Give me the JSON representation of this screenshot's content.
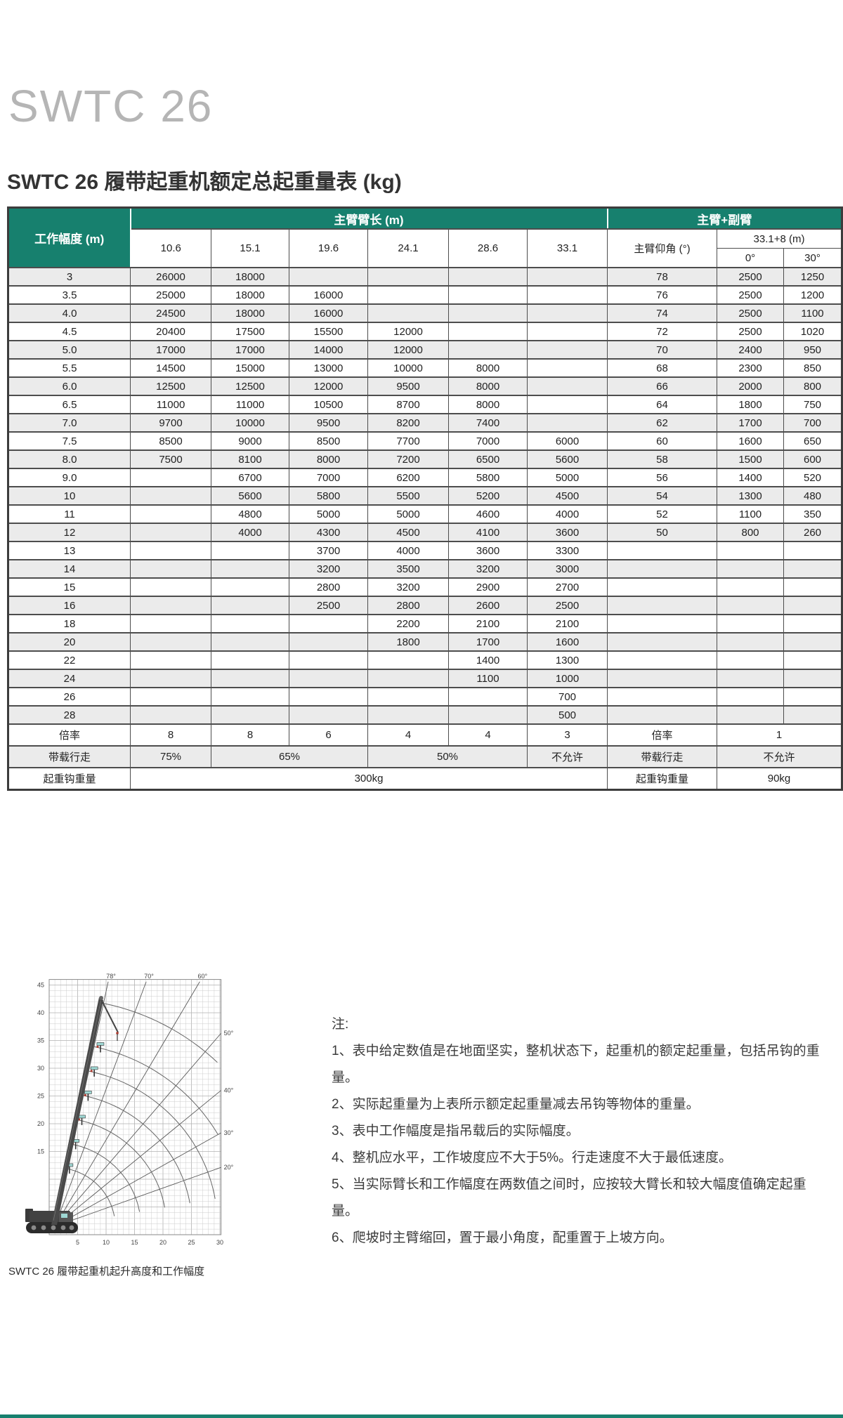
{
  "page": {
    "model": "SWTC 26",
    "subtitle": "SWTC 26 履带起重机额定总起重量表 (kg)",
    "accent_color": "#17806E",
    "stripe_color": "#ebebeb"
  },
  "table": {
    "header": {
      "col1": "工作幅度 (m)",
      "main_boom_group": "主臂臂长 (m)",
      "jib_group": "主臂+副臂",
      "boom_lengths": [
        "10.6",
        "15.1",
        "19.6",
        "24.1",
        "28.6",
        "33.1"
      ],
      "angle_col": "主臂仰角 (°)",
      "jib_config": "33.1+8  (m)",
      "jib_angles": [
        "0°",
        "30°"
      ]
    },
    "rows": [
      {
        "radius": "3",
        "values": [
          "26000",
          "18000",
          "",
          "",
          "",
          ""
        ],
        "angle": "78",
        "jib": [
          "2500",
          "1250"
        ]
      },
      {
        "radius": "3.5",
        "values": [
          "25000",
          "18000",
          "16000",
          "",
          "",
          ""
        ],
        "angle": "76",
        "jib": [
          "2500",
          "1200"
        ]
      },
      {
        "radius": "4.0",
        "values": [
          "24500",
          "18000",
          "16000",
          "",
          "",
          ""
        ],
        "angle": "74",
        "jib": [
          "2500",
          "1100"
        ]
      },
      {
        "radius": "4.5",
        "values": [
          "20400",
          "17500",
          "15500",
          "12000",
          "",
          ""
        ],
        "angle": "72",
        "jib": [
          "2500",
          "1020"
        ]
      },
      {
        "radius": "5.0",
        "values": [
          "17000",
          "17000",
          "14000",
          "12000",
          "",
          ""
        ],
        "angle": "70",
        "jib": [
          "2400",
          "950"
        ]
      },
      {
        "radius": "5.5",
        "values": [
          "14500",
          "15000",
          "13000",
          "10000",
          "8000",
          ""
        ],
        "angle": "68",
        "jib": [
          "2300",
          "850"
        ]
      },
      {
        "radius": "6.0",
        "values": [
          "12500",
          "12500",
          "12000",
          "9500",
          "8000",
          ""
        ],
        "angle": "66",
        "jib": [
          "2000",
          "800"
        ]
      },
      {
        "radius": "6.5",
        "values": [
          "11000",
          "11000",
          "10500",
          "8700",
          "8000",
          ""
        ],
        "angle": "64",
        "jib": [
          "1800",
          "750"
        ]
      },
      {
        "radius": "7.0",
        "values": [
          "9700",
          "10000",
          "9500",
          "8200",
          "7400",
          ""
        ],
        "angle": "62",
        "jib": [
          "1700",
          "700"
        ]
      },
      {
        "radius": "7.5",
        "values": [
          "8500",
          "9000",
          "8500",
          "7700",
          "7000",
          "6000"
        ],
        "angle": "60",
        "jib": [
          "1600",
          "650"
        ]
      },
      {
        "radius": "8.0",
        "values": [
          "7500",
          "8100",
          "8000",
          "7200",
          "6500",
          "5600"
        ],
        "angle": "58",
        "jib": [
          "1500",
          "600"
        ]
      },
      {
        "radius": "9.0",
        "values": [
          "",
          "6700",
          "7000",
          "6200",
          "5800",
          "5000"
        ],
        "angle": "56",
        "jib": [
          "1400",
          "520"
        ]
      },
      {
        "radius": "10",
        "values": [
          "",
          "5600",
          "5800",
          "5500",
          "5200",
          "4500"
        ],
        "angle": "54",
        "jib": [
          "1300",
          "480"
        ]
      },
      {
        "radius": "11",
        "values": [
          "",
          "4800",
          "5000",
          "5000",
          "4600",
          "4000"
        ],
        "angle": "52",
        "jib": [
          "1100",
          "350"
        ]
      },
      {
        "radius": "12",
        "values": [
          "",
          "4000",
          "4300",
          "4500",
          "4100",
          "3600"
        ],
        "angle": "50",
        "jib": [
          "800",
          "260"
        ]
      },
      {
        "radius": "13",
        "values": [
          "",
          "",
          "3700",
          "4000",
          "3600",
          "3300"
        ],
        "angle": "",
        "jib": [
          "",
          ""
        ]
      },
      {
        "radius": "14",
        "values": [
          "",
          "",
          "3200",
          "3500",
          "3200",
          "3000"
        ],
        "angle": "",
        "jib": [
          "",
          ""
        ]
      },
      {
        "radius": "15",
        "values": [
          "",
          "",
          "2800",
          "3200",
          "2900",
          "2700"
        ],
        "angle": "",
        "jib": [
          "",
          ""
        ]
      },
      {
        "radius": "16",
        "values": [
          "",
          "",
          "2500",
          "2800",
          "2600",
          "2500"
        ],
        "angle": "",
        "jib": [
          "",
          ""
        ]
      },
      {
        "radius": "18",
        "values": [
          "",
          "",
          "",
          "2200",
          "2100",
          "2100"
        ],
        "angle": "",
        "jib": [
          "",
          ""
        ]
      },
      {
        "radius": "20",
        "values": [
          "",
          "",
          "",
          "1800",
          "1700",
          "1600"
        ],
        "angle": "",
        "jib": [
          "",
          ""
        ]
      },
      {
        "radius": "22",
        "values": [
          "",
          "",
          "",
          "",
          "1400",
          "1300"
        ],
        "angle": "",
        "jib": [
          "",
          ""
        ]
      },
      {
        "radius": "24",
        "values": [
          "",
          "",
          "",
          "",
          "1100",
          "1000"
        ],
        "angle": "",
        "jib": [
          "",
          ""
        ]
      },
      {
        "radius": "26",
        "values": [
          "",
          "",
          "",
          "",
          "",
          "700"
        ],
        "angle": "",
        "jib": [
          "",
          ""
        ]
      },
      {
        "radius": "28",
        "values": [
          "",
          "",
          "",
          "",
          "",
          "500"
        ],
        "angle": "",
        "jib": [
          "",
          ""
        ]
      }
    ],
    "footer": {
      "ratio_label": "倍率",
      "ratio_values": [
        "8",
        "8",
        "6",
        "4",
        "4",
        "3"
      ],
      "ratio_label2": "倍率",
      "ratio_jib": "1",
      "travel_label": "带载行走",
      "travel_cells": [
        {
          "text": "75%",
          "span": 1
        },
        {
          "text": "65%",
          "span": 2
        },
        {
          "text": "50%",
          "span": 2
        },
        {
          "text": "不允许",
          "span": 1
        }
      ],
      "travel_label2": "带载行走",
      "travel_jib": "不允许",
      "hook_label": "起重钩重量",
      "hook_value": "300kg",
      "hook_label2": "起重钩重量",
      "hook_jib": "90kg"
    }
  },
  "chart": {
    "caption": "SWTC 26 履带起重机起升高度和工作幅度"
  },
  "chart_data": {
    "type": "line",
    "title": "SWTC 26 履带起重机起升高度和工作幅度",
    "xlabel": "",
    "ylabel": "",
    "xlim": [
      0,
      30
    ],
    "ylim": [
      0,
      46
    ],
    "x_ticks": [
      5,
      10,
      15,
      20,
      25,
      30
    ],
    "y_ticks": [
      15,
      20,
      25,
      30,
      35,
      40,
      45
    ],
    "grid": true,
    "angle_rays_deg": [
      78,
      70,
      60,
      50,
      40,
      30,
      20
    ],
    "boom_length_arcs_m": [
      10.6,
      15.1,
      19.6,
      24.1,
      28.6,
      33.1,
      41.1
    ],
    "pivot_m": [
      1,
      1.5
    ]
  },
  "notes": {
    "heading": "注:",
    "items": [
      "1、表中给定数值是在地面坚实，整机状态下，起重机的额定起重量，包括吊钩的重量。",
      "2、实际起重量为上表所示额定起重量减去吊钩等物体的重量。",
      "3、表中工作幅度是指吊载后的实际幅度。",
      "4、整机应水平，工作坡度应不大于5%。行走速度不大于最低速度。",
      "5、当实际臂长和工作幅度在两数值之间时，应按较大臂长和较大幅度值确定起重量。",
      "6、爬坡时主臂缩回，置于最小角度，配重置于上坡方向。"
    ]
  }
}
